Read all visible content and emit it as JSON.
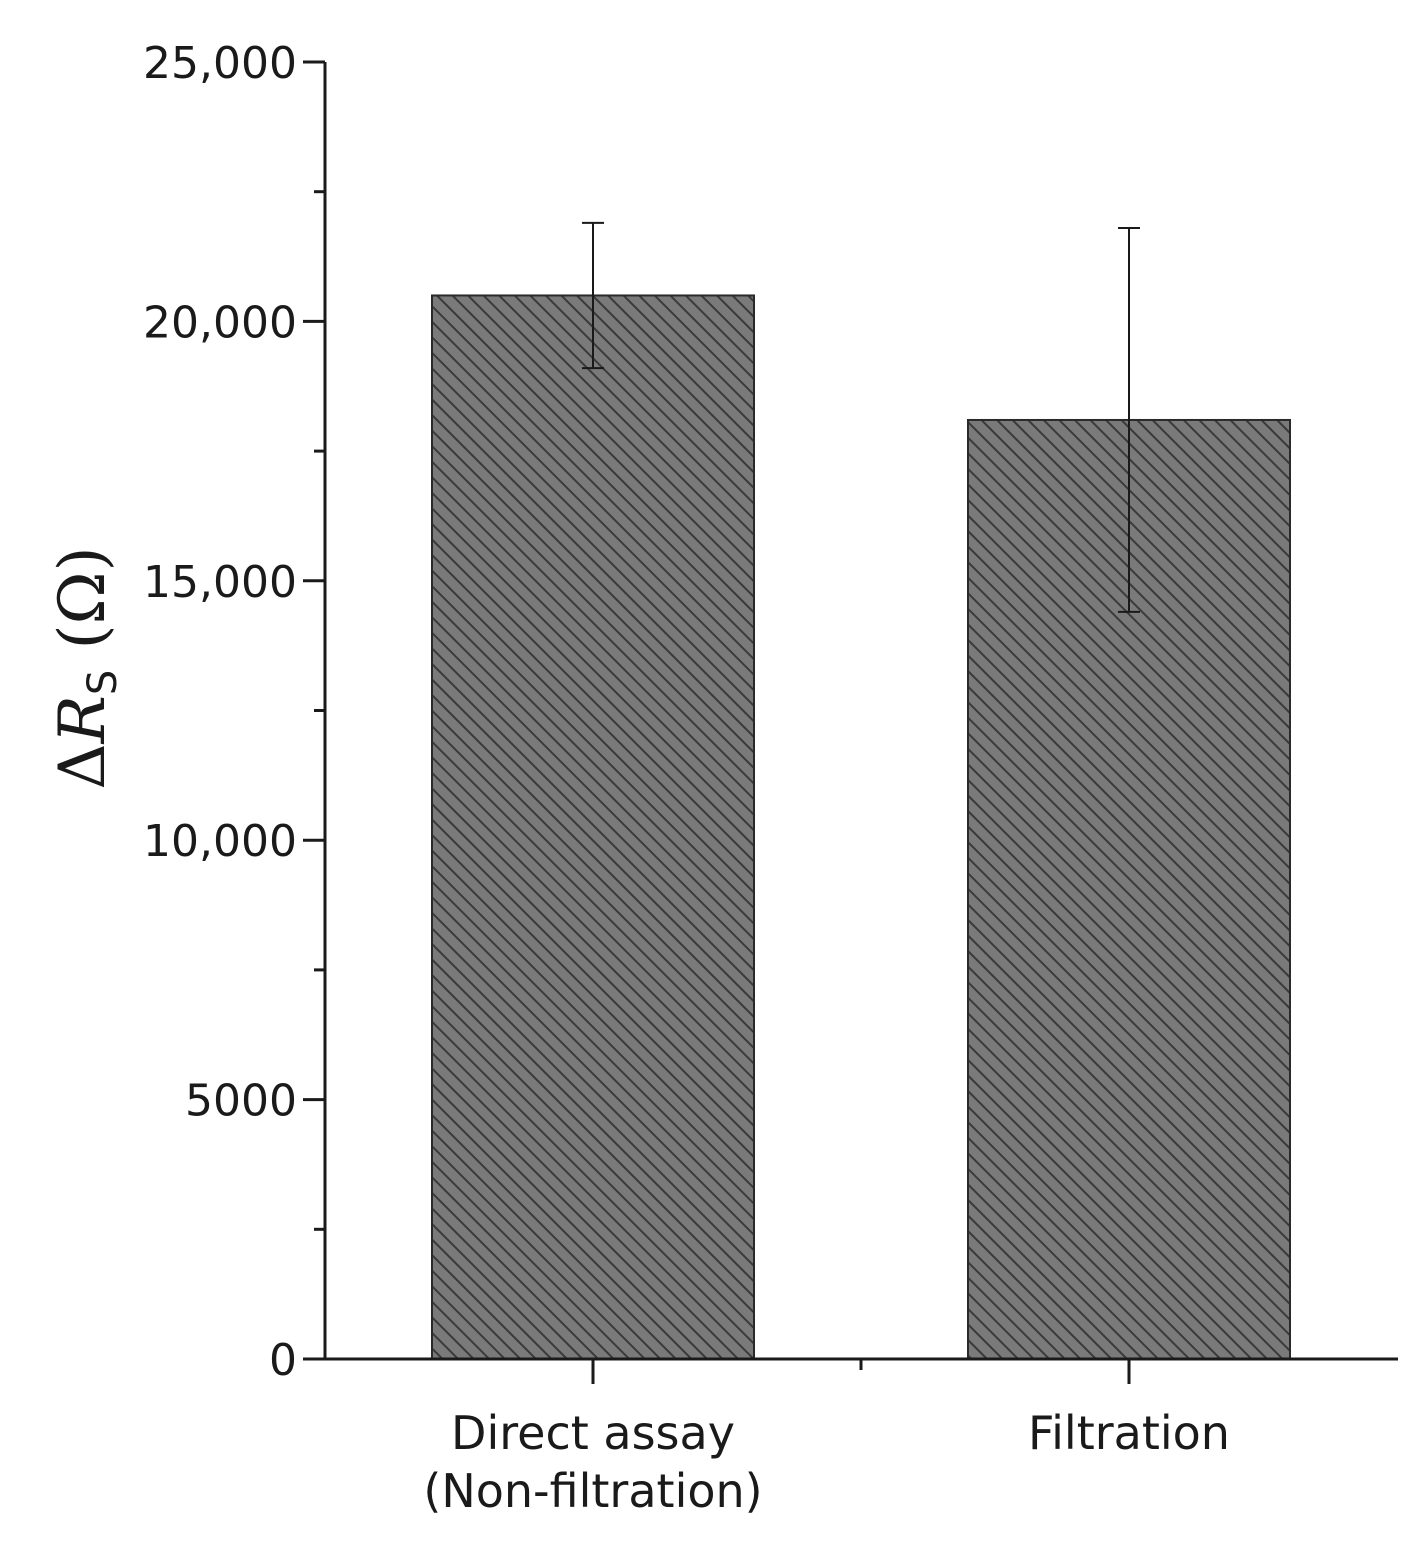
{
  "chart_data": {
    "type": "bar",
    "title": "",
    "xlabel": "",
    "ylabel": {
      "delta": "Δ",
      "symbol": "R",
      "subscript": "S",
      "unit": " (Ω)"
    },
    "ylim": [
      0,
      25000
    ],
    "yticks": [
      {
        "value": 0,
        "label": "0"
      },
      {
        "value": 5000,
        "label": "5000"
      },
      {
        "value": 10000,
        "label": "10,000"
      },
      {
        "value": 15000,
        "label": "15,000"
      },
      {
        "value": 20000,
        "label": "20,000"
      },
      {
        "value": 25000,
        "label": "25,000"
      }
    ],
    "minor_y_step": 2500,
    "grid": false,
    "categories": [
      [
        "Direct assay",
        "(Non-filtration)"
      ],
      [
        "Filtration"
      ]
    ],
    "values": [
      20500,
      18100
    ],
    "errors": [
      1400,
      3700
    ],
    "bar_fill": "#7a7a7a",
    "hatch_color": "#3a3a3a",
    "bar_edge": "#2a2a2a",
    "hatch_style": "diagonal"
  }
}
